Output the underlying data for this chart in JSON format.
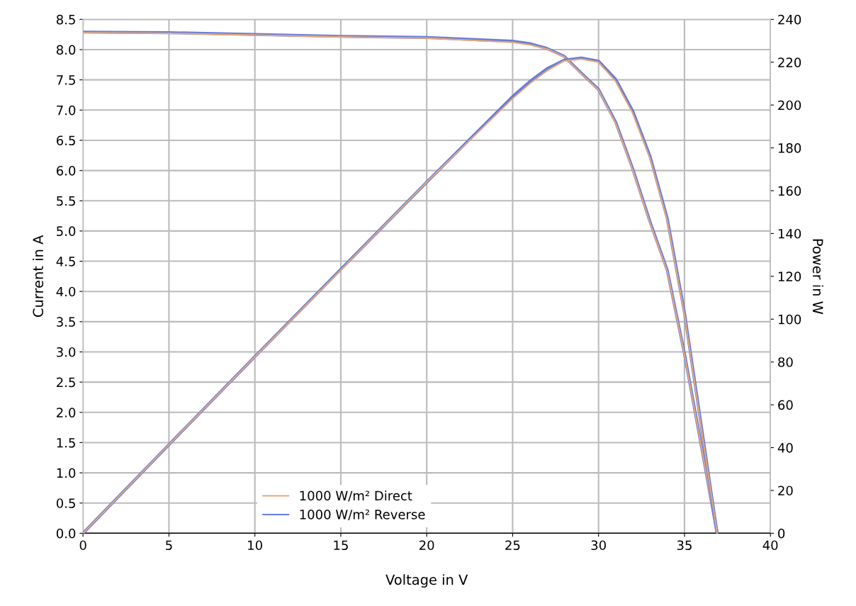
{
  "chart_data": {
    "type": "line",
    "xlabel": "Voltage in V",
    "ylabel": "Current in A",
    "y2label": "Power in W",
    "xlim": [
      0,
      40
    ],
    "xticks": [
      0,
      5,
      10,
      15,
      20,
      25,
      30,
      35,
      40
    ],
    "ylim": [
      0,
      8.5
    ],
    "yticks": [
      {
        "value": 0,
        "label": "0.0"
      },
      0.5,
      {
        "value": 1,
        "label": "1.0"
      },
      1.5,
      {
        "value": 2,
        "label": "2.0"
      },
      2.5,
      {
        "value": 3,
        "label": "3.0"
      },
      3.5,
      {
        "value": 4,
        "label": "4.0"
      },
      4.5,
      {
        "value": 5,
        "label": "5.0"
      },
      5.5,
      {
        "value": 6,
        "label": "6.0"
      },
      6.5,
      {
        "value": 7,
        "label": "7.0"
      },
      7.5,
      {
        "value": 8,
        "label": "8.0"
      },
      8.5
    ],
    "y2lim": [
      0,
      240
    ],
    "y2ticks": [
      0,
      20,
      40,
      60,
      80,
      100,
      120,
      140,
      160,
      180,
      200,
      220,
      240
    ],
    "grid": true,
    "legend": "bottom",
    "marker": "none",
    "line_style": "solid",
    "series": [
      {
        "name": "1000 W/m² Reverse",
        "color": "#6a7fd8",
        "x": [
          0,
          5,
          10,
          15,
          20,
          25,
          26,
          27,
          28,
          29,
          30,
          31,
          32,
          33,
          34,
          35,
          36,
          36.9
        ],
        "values": [
          8.29,
          8.28,
          8.25,
          8.22,
          8.2,
          8.14,
          8.1,
          8.02,
          7.89,
          7.61,
          7.34,
          6.8,
          6.02,
          5.15,
          4.35,
          2.97,
          1.42,
          0
        ]
      },
      {
        "name": "1000 W/m² Direct",
        "color": "#e8a878",
        "x": [
          0,
          5,
          10,
          15,
          20,
          25,
          26,
          27,
          28,
          29,
          30,
          31,
          32,
          33,
          34,
          35,
          36,
          36.9
        ],
        "values": [
          8.28,
          8.27,
          8.24,
          8.21,
          8.19,
          8.12,
          8.08,
          8.01,
          7.88,
          7.6,
          7.33,
          6.78,
          6.0,
          5.13,
          4.33,
          2.95,
          1.4,
          0
        ]
      },
      {
        "color": "#6a7fd8",
        "axis": "y2",
        "x": [
          0,
          5,
          10,
          15,
          20,
          25,
          26,
          27,
          28,
          29,
          30,
          31,
          32,
          33,
          34,
          35,
          36,
          36.9
        ],
        "values": [
          0,
          41.4,
          82.5,
          123.3,
          164,
          204,
          211,
          217,
          221,
          222,
          220.5,
          212,
          197,
          176,
          147,
          103,
          49,
          0
        ]
      },
      {
        "color": "#e8a878",
        "axis": "y2",
        "x": [
          0,
          5,
          10,
          15,
          20,
          25,
          26,
          27,
          28,
          29,
          30,
          31,
          32,
          33,
          34,
          35,
          36,
          36.9
        ],
        "values": [
          0,
          41.4,
          82.4,
          123,
          164,
          203,
          210,
          216,
          220.6,
          221.5,
          220,
          211,
          196,
          175,
          146,
          102,
          48,
          0
        ]
      }
    ]
  }
}
